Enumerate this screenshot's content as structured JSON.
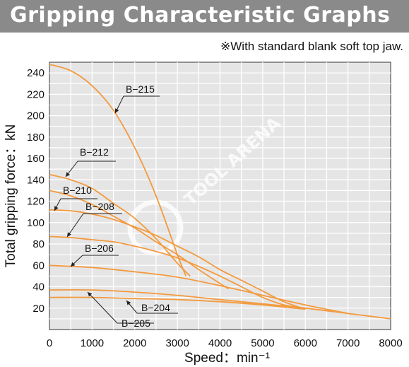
{
  "header": {
    "title": "Gripping Characteristic Graphs",
    "note": "※With standard blank soft top jaw."
  },
  "watermark": "TOOL ARENA",
  "colors": {
    "title_bg": "#8a8a8a",
    "plot_bg": "#e5e5e5",
    "grid": "#ffffff",
    "curve": "#f39a3f",
    "leader": "#222222"
  },
  "chart_data": {
    "type": "line",
    "xlabel": "Speed：min⁻¹",
    "ylabel": "Total gripping force：kN",
    "xlim": [
      0,
      8000
    ],
    "ylim": [
      0,
      250
    ],
    "xticks": [
      0,
      1000,
      2000,
      3000,
      4000,
      5000,
      6000,
      7000,
      8000
    ],
    "yticks": [
      20,
      40,
      60,
      80,
      100,
      120,
      140,
      160,
      180,
      200,
      220,
      240
    ],
    "grid": true,
    "series": [
      {
        "name": "B−215",
        "x": [
          0,
          500,
          1000,
          1500,
          2000,
          2500,
          3000,
          3200
        ],
        "y": [
          248,
          242,
          228,
          205,
          170,
          125,
          70,
          50
        ]
      },
      {
        "name": "B−212",
        "x": [
          0,
          500,
          1000,
          1500,
          2000,
          2500,
          3000,
          3300
        ],
        "y": [
          145,
          140,
          132,
          118,
          104,
          85,
          62,
          50
        ]
      },
      {
        "name": "B−210",
        "x": [
          0,
          500,
          1000,
          1500,
          2000,
          2500,
          3000,
          3500,
          4000,
          4200
        ],
        "y": [
          130,
          125,
          117,
          106,
          95,
          82,
          70,
          56,
          43,
          38
        ]
      },
      {
        "name": "B−208",
        "x": [
          0,
          500,
          1000,
          1500,
          2000,
          2500,
          3000,
          3500,
          4000,
          4500,
          5000,
          5500,
          6000
        ],
        "y": [
          112,
          111,
          108,
          103,
          96,
          88,
          78,
          68,
          56,
          46,
          36,
          26,
          19
        ]
      },
      {
        "name": "B−206",
        "x": [
          0,
          500,
          1000,
          1500,
          2000,
          2500,
          3000,
          3500,
          4000,
          4500,
          5000,
          5500,
          6000
        ],
        "y": [
          87,
          86,
          84,
          82,
          78,
          73,
          67,
          59,
          50,
          40,
          30,
          23,
          20
        ]
      },
      {
        "name": "B−206",
        "x": [
          0,
          1000,
          2000,
          3000,
          4000,
          5000,
          6000,
          7000
        ],
        "y": [
          60,
          58,
          54,
          49,
          41,
          32,
          23,
          15
        ]
      },
      {
        "name": "B−204",
        "x": [
          0,
          1000,
          2000,
          3000,
          4000,
          5000,
          6000,
          7000,
          8000
        ],
        "y": [
          37,
          37,
          35,
          32,
          28,
          24,
          20,
          15,
          10
        ]
      },
      {
        "name": "B−205",
        "x": [
          0,
          1000,
          2000,
          3000,
          4000,
          5000,
          6000
        ],
        "y": [
          30,
          30,
          29,
          28,
          26,
          23,
          19
        ]
      }
    ],
    "labels": [
      {
        "text": "B−215",
        "series": 0
      },
      {
        "text": "B−212",
        "series": 1
      },
      {
        "text": "B−210",
        "series": 2
      },
      {
        "text": "B−208",
        "series": 3
      },
      {
        "text": "B−206",
        "series": 5
      },
      {
        "text": "B−204",
        "series": 6
      },
      {
        "text": "B−205",
        "series": 7
      }
    ]
  }
}
